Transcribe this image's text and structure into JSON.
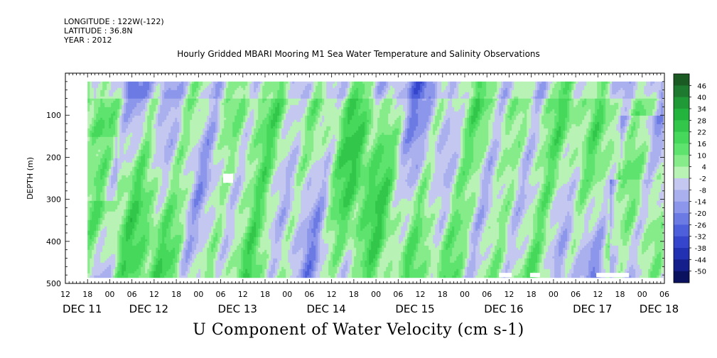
{
  "header": {
    "longitude": "LONGITUDE : 122W(-122)",
    "latitude": "LATITUDE : 36.8N",
    "year": "YEAR : 2012",
    "title": "Hourly Gridded MBARI Mooring M1 Sea Water Temperature and Salinity Observations"
  },
  "chart_data": {
    "type": "heatmap",
    "title": "Hourly Gridded MBARI Mooring M1 Sea Water Temperature and Salinity Observations",
    "variable_label": "U Component of Water Velocity (cm s-1)",
    "ylabel": "DEPTH (m)",
    "y_axis_inverted": true,
    "ylim": [
      500,
      0
    ],
    "y_ticks": [
      100,
      200,
      300,
      400,
      500
    ],
    "y_tick_labels": [
      "100",
      "200",
      "300",
      "400",
      "500"
    ],
    "data_depth_range": [
      20,
      485
    ],
    "x_axis_type": "time",
    "x_range_hours": [
      "2012-12-11 12:00",
      "2012-12-18 06:00"
    ],
    "x_tick_labels": [
      "12",
      "18",
      "00",
      "06",
      "12",
      "18",
      "00",
      "06",
      "12",
      "18",
      "00",
      "06",
      "12",
      "18",
      "00",
      "06",
      "12",
      "18",
      "00",
      "06",
      "12",
      "18",
      "00",
      "06",
      "12",
      "18",
      "00",
      "06"
    ],
    "day_labels": [
      "DEC 11",
      "DEC 12",
      "DEC 13",
      "DEC 14",
      "DEC 15",
      "DEC 16",
      "DEC 17",
      "DEC 18"
    ],
    "day_label_hours": [
      0,
      18,
      42,
      66,
      90,
      114,
      138,
      156
    ],
    "data_start_hour": 6,
    "colorbar": {
      "levels": [
        "46",
        "40",
        "34",
        "28",
        "22",
        "16",
        "10",
        "4",
        "-2",
        "-8",
        "-14",
        "-20",
        "-26",
        "-32",
        "-38",
        "-44",
        "-50"
      ],
      "colors": [
        "#1c5a24",
        "#1d7a2e",
        "#1f9a36",
        "#23b43e",
        "#32c74a",
        "#46d85a",
        "#5ee46e",
        "#86ec8a",
        "#b8f2b4",
        "#c4c8f0",
        "#aab0ee",
        "#8c96ea",
        "#6c7ae4",
        "#4d5fdb",
        "#3545cc",
        "#2230b2",
        "#141f8c",
        "#0a1260"
      ],
      "range": [
        -50,
        52
      ]
    },
    "missing_data_patches": [
      {
        "hour": 44,
        "depth": 250
      },
      {
        "hour": 119,
        "depth": 480
      },
      {
        "hour": 127,
        "depth": 480
      },
      {
        "hour": 148,
        "depth": 480
      }
    ]
  }
}
